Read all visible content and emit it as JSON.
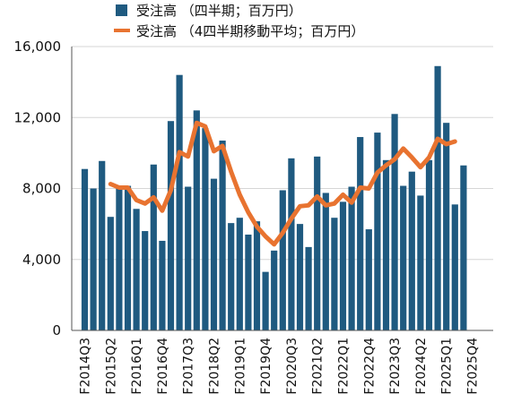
{
  "chart_data": {
    "type": "bar",
    "y_ticks": [
      "0",
      "4,000",
      "8,000",
      "12,000",
      "16,000"
    ],
    "ylim": [
      0,
      16000
    ],
    "grid": true,
    "legend_placement": "top-center",
    "x_tick_labels": [
      "F2014Q3",
      "F2015Q2",
      "F2016Q1",
      "F2016Q4",
      "F2017Q3",
      "F2018Q2",
      "F2019Q1",
      "F2019Q4",
      "F2020Q3",
      "F2021Q2",
      "F2022Q1",
      "F2022Q4",
      "F2023Q3",
      "F2024Q2",
      "F2025Q1",
      "F2025Q4"
    ],
    "categories": [
      "F2014Q3",
      "F2014Q4",
      "F2015Q1",
      "F2015Q2",
      "F2015Q3",
      "F2015Q4",
      "F2016Q1",
      "F2016Q2",
      "F2016Q3",
      "F2016Q4",
      "F2017Q1",
      "F2017Q2",
      "F2017Q3",
      "F2017Q4",
      "F2018Q1",
      "F2018Q2",
      "F2018Q3",
      "F2018Q4",
      "F2019Q1",
      "F2019Q2",
      "F2019Q3",
      "F2019Q4",
      "F2020Q1",
      "F2020Q2",
      "F2020Q3",
      "F2020Q4",
      "F2021Q1",
      "F2021Q2",
      "F2021Q3",
      "F2021Q4",
      "F2022Q1",
      "F2022Q2",
      "F2022Q3",
      "F2022Q4",
      "F2023Q1",
      "F2023Q2",
      "F2023Q3",
      "F2023Q4",
      "F2024Q1",
      "F2024Q2",
      "F2024Q3",
      "F2024Q4",
      "F2025Q1",
      "F2025Q2",
      "F2025Q3",
      "F2025Q4"
    ],
    "series": [
      {
        "name": "受注高 （四半期；百万円）",
        "type": "bar",
        "color": "#1f5a80",
        "values": [
          9100,
          8000,
          9550,
          6400,
          8100,
          8150,
          6850,
          5600,
          9350,
          5050,
          11800,
          14400,
          8100,
          12400,
          11400,
          8550,
          10700,
          6050,
          6350,
          5400,
          6150,
          3300,
          4500,
          7900,
          9700,
          6000,
          4700,
          9800,
          7750,
          6350,
          7250,
          8100,
          10900,
          5700,
          11150,
          9600,
          12200,
          8150,
          8950,
          7600,
          9600,
          14900,
          11700,
          7100,
          9300,
          null
        ]
      },
      {
        "name": "受注高 （4四半期移動平均；百万円）",
        "type": "line",
        "color": "#e87330",
        "values": [
          null,
          null,
          null,
          8250,
          8050,
          8050,
          7350,
          7150,
          7500,
          6750,
          7900,
          10050,
          9800,
          11700,
          11500,
          10100,
          10400,
          8950,
          7650,
          6650,
          5850,
          5300,
          4850,
          5500,
          6300,
          7000,
          7050,
          7550,
          7050,
          7150,
          7650,
          7200,
          8050,
          8000,
          8900,
          9300,
          9650,
          10250,
          9750,
          9200,
          9750,
          10800,
          10500,
          10650,
          null,
          null
        ]
      }
    ]
  },
  "legend": [
    {
      "label": "受注高 （四半期；百万円）",
      "marker": "square",
      "color": "#1f5a80"
    },
    {
      "label": "受注高 （4四半期移動平均；百万円）",
      "marker": "line",
      "color": "#e87330"
    }
  ]
}
